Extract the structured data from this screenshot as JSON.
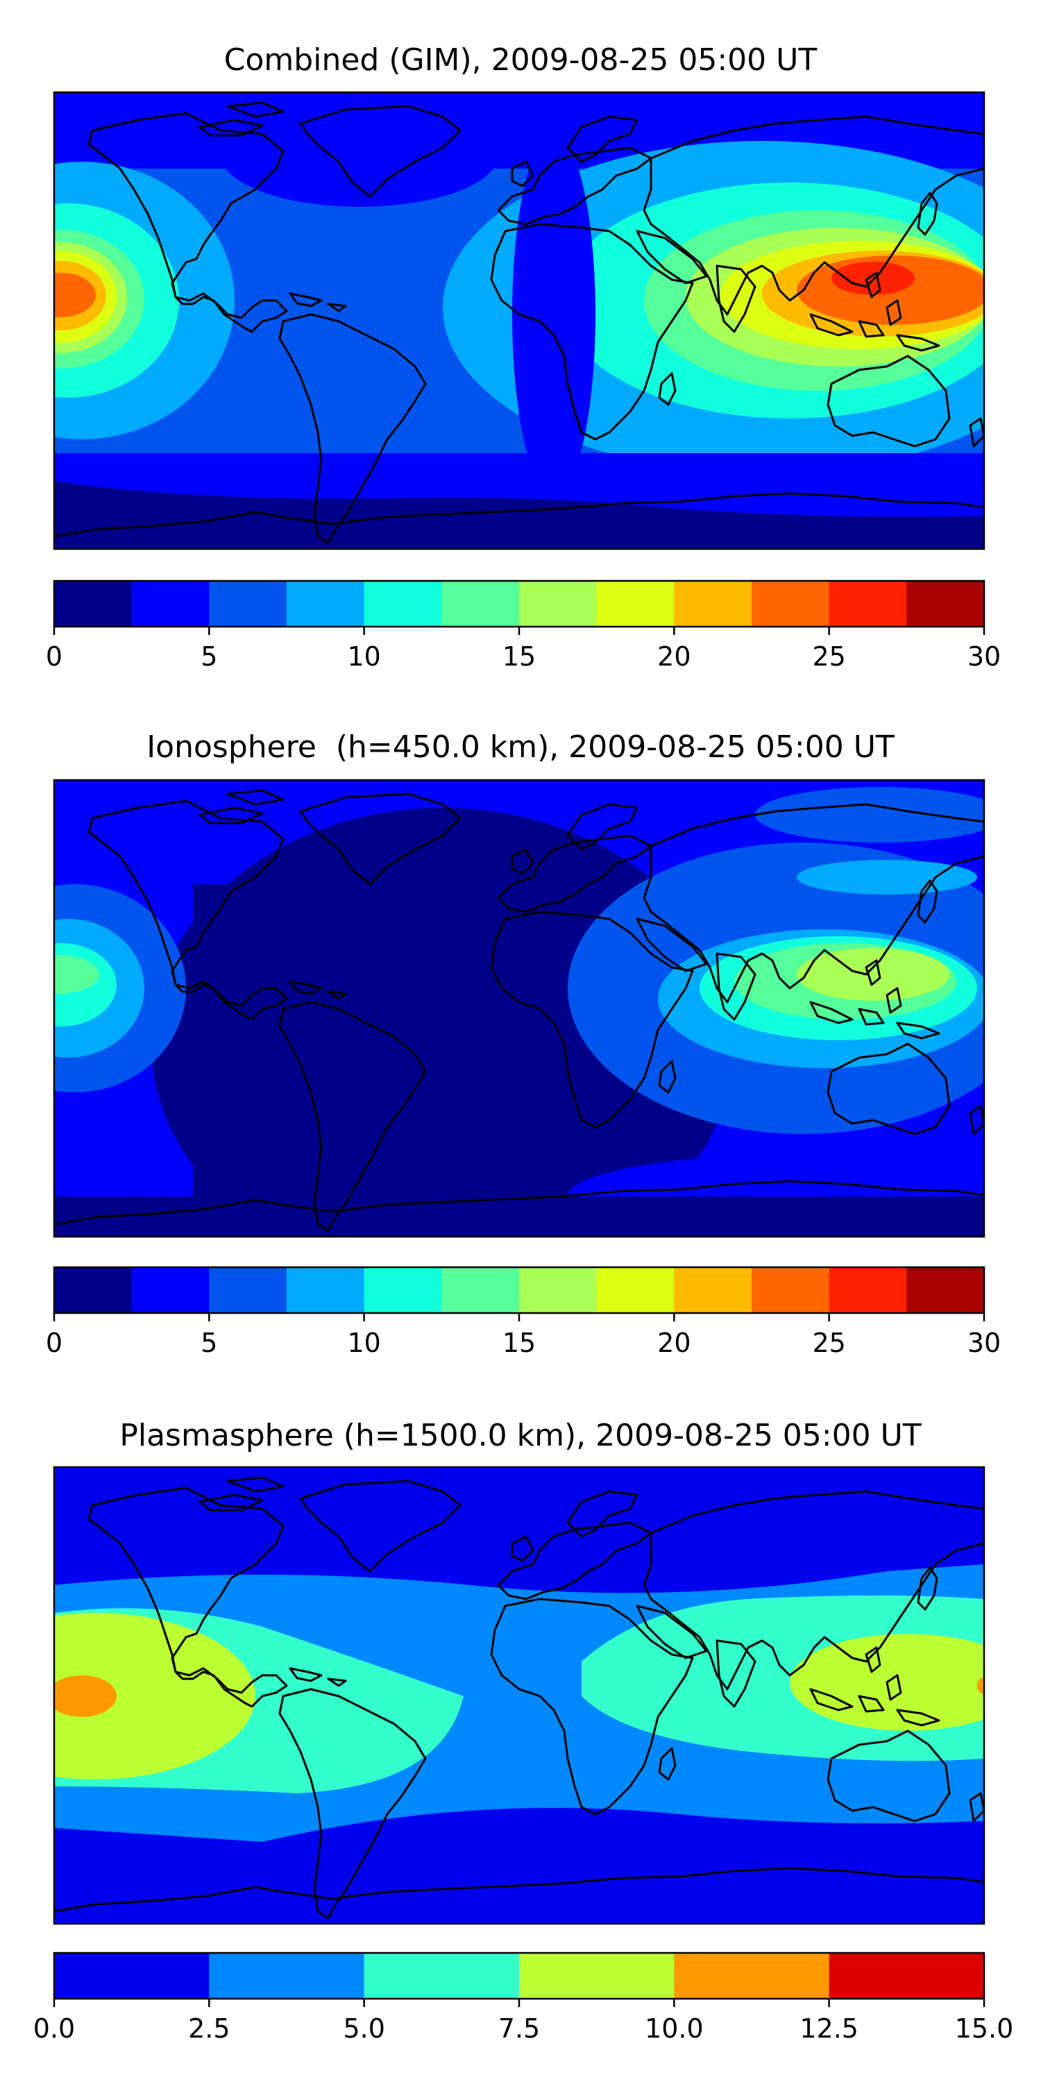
{
  "panels": [
    {
      "title": "Combined (GIM), 2009-08-25 05:00 UT",
      "colorbar": {
        "colors": [
          "#00008b",
          "#0000ff",
          "#0055ee",
          "#00aaff",
          "#11ffdd",
          "#55ff99",
          "#aaff55",
          "#ddff11",
          "#ffbb00",
          "#ff6600",
          "#ff2200",
          "#aa0000"
        ],
        "ticks": [
          "0",
          "5",
          "10",
          "15",
          "20",
          "25",
          "30"
        ]
      }
    },
    {
      "title": "Ionosphere  (h=450.0 km), 2009-08-25 05:00 UT",
      "colorbar": {
        "colors": [
          "#00008b",
          "#0000ff",
          "#0055ee",
          "#00aaff",
          "#11ffdd",
          "#55ff99",
          "#aaff55",
          "#ddff11",
          "#ffbb00",
          "#ff6600",
          "#ff2200",
          "#aa0000"
        ],
        "ticks": [
          "0",
          "5",
          "10",
          "15",
          "20",
          "25",
          "30"
        ]
      }
    },
    {
      "title": "Plasmasphere (h=1500.0 km), 2009-08-25 05:00 UT",
      "colorbar": {
        "colors": [
          "#0000ee",
          "#0088ff",
          "#33ffcc",
          "#bbff33",
          "#ff9900",
          "#dd0000"
        ],
        "ticks": [
          "0.0",
          "2.5",
          "5.0",
          "7.5",
          "10.0",
          "12.5",
          "15.0"
        ]
      }
    }
  ]
}
